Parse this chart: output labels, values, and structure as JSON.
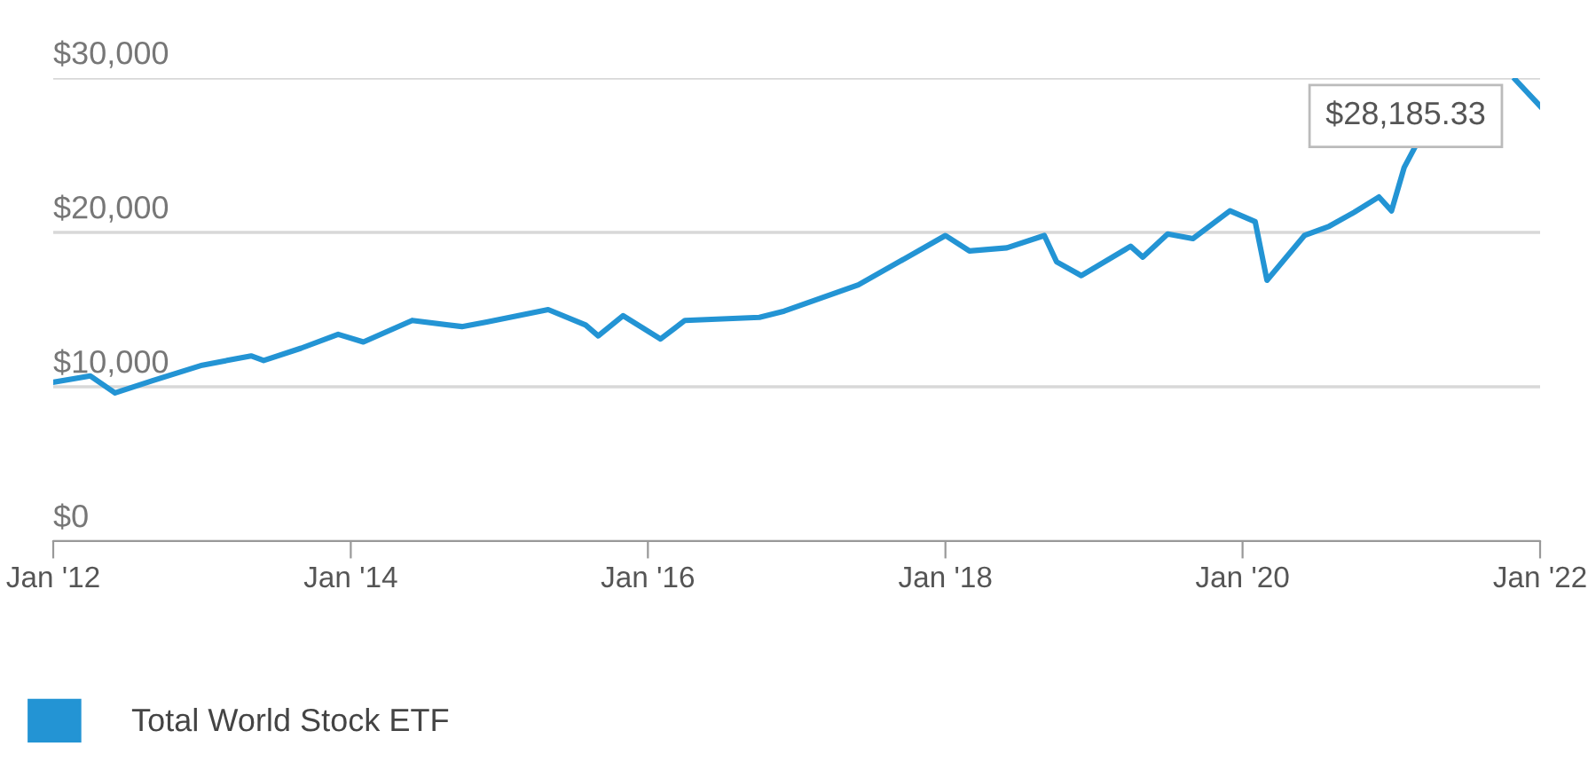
{
  "chart_data": {
    "type": "line",
    "x": [
      "2012-01",
      "2012-04",
      "2012-06",
      "2012-09",
      "2013-01",
      "2013-05",
      "2013-06",
      "2013-09",
      "2013-12",
      "2014-02",
      "2014-06",
      "2014-10",
      "2014-12",
      "2015-05",
      "2015-08",
      "2015-09",
      "2015-11",
      "2016-02",
      "2016-04",
      "2016-10",
      "2016-12",
      "2017-06",
      "2018-01",
      "2018-03",
      "2018-06",
      "2018-09",
      "2018-10",
      "2018-12",
      "2019-04",
      "2019-05",
      "2019-07",
      "2019-09",
      "2019-12",
      "2020-02",
      "2020-03",
      "2020-06",
      "2020-08",
      "2020-10",
      "2020-12",
      "2021-01",
      "2021-02",
      "2021-03",
      "2021-06",
      "2021-09",
      "2021-11",
      "2022-01"
    ],
    "series": [
      {
        "name": "Total World Stock ETF",
        "color": "#2394d4",
        "values": [
          10300,
          10700,
          9600,
          10400,
          11400,
          12000,
          11700,
          12500,
          13400,
          12900,
          14300,
          13900,
          14200,
          15000,
          14000,
          13300,
          14600,
          13100,
          14300,
          14500,
          14900,
          16600,
          19800,
          18800,
          19000,
          19800,
          18100,
          17200,
          19100,
          18400,
          19900,
          19600,
          21400,
          20700,
          16900,
          19800,
          20400,
          21300,
          22300,
          21400,
          24200,
          25600,
          null,
          null,
          29900,
          28185.33
        ]
      }
    ],
    "xlim": [
      "2012-01",
      "2022-01"
    ],
    "xticks": [
      {
        "value": "2012-01",
        "label": "Jan '12"
      },
      {
        "value": "2014-01",
        "label": "Jan '14"
      },
      {
        "value": "2016-01",
        "label": "Jan '16"
      },
      {
        "value": "2018-01",
        "label": "Jan '18"
      },
      {
        "value": "2020-01",
        "label": "Jan '20"
      },
      {
        "value": "2022-01",
        "label": "Jan '22"
      }
    ],
    "ylim": [
      0,
      30000
    ],
    "yticks": [
      {
        "value": 0,
        "label": "$0"
      },
      {
        "value": 10000,
        "label": "$10,000"
      },
      {
        "value": 20000,
        "label": "$20,000"
      },
      {
        "value": 30000,
        "label": "$30,000"
      }
    ],
    "grid": "y",
    "legend": "bottom",
    "marker": "none",
    "line_style": "solid",
    "annotations": [
      {
        "text": "$28,185.33",
        "x": "2022-01",
        "y": 28185.33
      }
    ]
  }
}
